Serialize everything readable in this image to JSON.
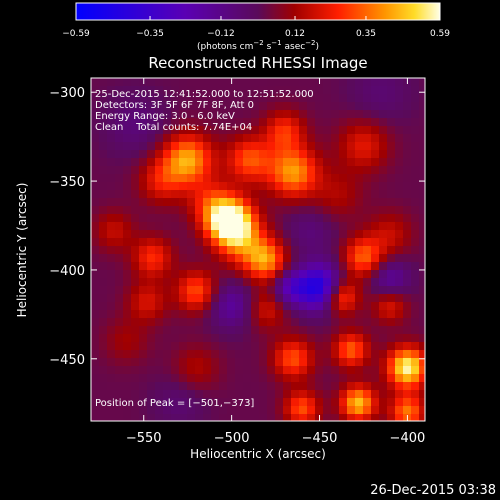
{
  "chart_data": {
    "type": "heatmap",
    "title": "Reconstructed RHESSI Image",
    "xlabel": "Heliocentric X (arcsec)",
    "ylabel": "Heliocentric Y (arcsec)",
    "xlim": [
      -580,
      -390
    ],
    "ylim": [
      -485,
      -292
    ],
    "x_ticks": [
      {
        "value": -550,
        "label": "−550"
      },
      {
        "value": -500,
        "label": "−500"
      },
      {
        "value": -450,
        "label": "−450"
      },
      {
        "value": -400,
        "label": "−400"
      }
    ],
    "y_ticks": [
      {
        "value": -300,
        "label": "−300"
      },
      {
        "value": -350,
        "label": "−350"
      },
      {
        "value": -400,
        "label": "−400"
      },
      {
        "value": -450,
        "label": "−450"
      }
    ],
    "colorbar": {
      "min": -0.59,
      "max": 0.59,
      "units_prefix": "(photons cm",
      "units_sup1": "−2",
      "units_mid1": " s",
      "units_sup2": "−1",
      "units_mid2": " asec",
      "units_sup3": "−2",
      "units_suffix": ")",
      "ticks": [
        {
          "value": -0.59,
          "label": "−0.59"
        },
        {
          "value": -0.35,
          "label": "−0.35"
        },
        {
          "value": -0.12,
          "label": "−0.12"
        },
        {
          "value": 0.12,
          "label": "0.12"
        },
        {
          "value": 0.35,
          "label": "0.35"
        },
        {
          "value": 0.59,
          "label": "0.59"
        }
      ],
      "colormap_stops": [
        {
          "v": 0.0,
          "color": "#0000ff"
        },
        {
          "v": 0.3,
          "color": "#5a00b4"
        },
        {
          "v": 0.5,
          "color": "#5a0a5a"
        },
        {
          "v": 0.6,
          "color": "#a00000"
        },
        {
          "v": 0.72,
          "color": "#ff1e00"
        },
        {
          "v": 0.85,
          "color": "#ff9600"
        },
        {
          "v": 0.93,
          "color": "#ffdc28"
        },
        {
          "v": 1.0,
          "color": "#ffffe6"
        }
      ]
    },
    "info_lines": [
      "25-Dec-2015 12:41:52.000 to 12:51:52.000",
      "Detectors: 3F 5F 6F 7F 8F, Att 0",
      "Energy Range: 3.0 - 6.0 keV",
      "Clean    Total counts: 7.74E+04"
    ],
    "peak_label": "Position of Peak = [−501,−373]",
    "peak": {
      "x": -501,
      "y": -373,
      "value": 0.59
    },
    "grid": false,
    "blobs": [
      {
        "x": -501,
        "y": -373,
        "amp": 0.72,
        "sigma": 9
      },
      {
        "x": -492,
        "y": -386,
        "amp": 0.25,
        "sigma": 10
      },
      {
        "x": -512,
        "y": -362,
        "amp": 0.2,
        "sigma": 9
      },
      {
        "x": -525,
        "y": -338,
        "amp": 0.42,
        "sigma": 10
      },
      {
        "x": -540,
        "y": -350,
        "amp": 0.2,
        "sigma": 9
      },
      {
        "x": -490,
        "y": -338,
        "amp": 0.3,
        "sigma": 9
      },
      {
        "x": -465,
        "y": -345,
        "amp": 0.4,
        "sigma": 10
      },
      {
        "x": -470,
        "y": -322,
        "amp": 0.25,
        "sigma": 8
      },
      {
        "x": -425,
        "y": -330,
        "amp": 0.2,
        "sigma": 10
      },
      {
        "x": -440,
        "y": -358,
        "amp": 0.12,
        "sigma": 10
      },
      {
        "x": -480,
        "y": -395,
        "amp": 0.35,
        "sigma": 8
      },
      {
        "x": -425,
        "y": -393,
        "amp": 0.32,
        "sigma": 8
      },
      {
        "x": -410,
        "y": -380,
        "amp": 0.15,
        "sigma": 9
      },
      {
        "x": -545,
        "y": -393,
        "amp": 0.25,
        "sigma": 8
      },
      {
        "x": -567,
        "y": -378,
        "amp": 0.15,
        "sigma": 8
      },
      {
        "x": -548,
        "y": -418,
        "amp": 0.18,
        "sigma": 8
      },
      {
        "x": -520,
        "y": -412,
        "amp": 0.3,
        "sigma": 8
      },
      {
        "x": -480,
        "y": -422,
        "amp": 0.18,
        "sigma": 8
      },
      {
        "x": -438,
        "y": -415,
        "amp": 0.35,
        "sigma": 7
      },
      {
        "x": -465,
        "y": -450,
        "amp": 0.3,
        "sigma": 8
      },
      {
        "x": -432,
        "y": -445,
        "amp": 0.32,
        "sigma": 7
      },
      {
        "x": -400,
        "y": -455,
        "amp": 0.55,
        "sigma": 8
      },
      {
        "x": -410,
        "y": -420,
        "amp": 0.2,
        "sigma": 7
      },
      {
        "x": -428,
        "y": -475,
        "amp": 0.45,
        "sigma": 7
      },
      {
        "x": -400,
        "y": -480,
        "amp": 0.35,
        "sigma": 7
      },
      {
        "x": -460,
        "y": -478,
        "amp": 0.3,
        "sigma": 7
      },
      {
        "x": -520,
        "y": -455,
        "amp": 0.12,
        "sigma": 9
      },
      {
        "x": -560,
        "y": -440,
        "amp": 0.1,
        "sigma": 9
      },
      {
        "x": -450,
        "y": -410,
        "amp": -0.5,
        "sigma": 9
      },
      {
        "x": -467,
        "y": -410,
        "amp": -0.25,
        "sigma": 7
      },
      {
        "x": -500,
        "y": -420,
        "amp": -0.2,
        "sigma": 9
      },
      {
        "x": -410,
        "y": -405,
        "amp": -0.2,
        "sigma": 8
      },
      {
        "x": -455,
        "y": -378,
        "amp": -0.1,
        "sigma": 10
      },
      {
        "x": -555,
        "y": -318,
        "amp": -0.1,
        "sigma": 12
      },
      {
        "x": -415,
        "y": -300,
        "amp": -0.08,
        "sigma": 12
      },
      {
        "x": -530,
        "y": -475,
        "amp": -0.08,
        "sigma": 10
      }
    ]
  },
  "footer": {
    "timestamp": "26-Dec-2015 03:38"
  }
}
